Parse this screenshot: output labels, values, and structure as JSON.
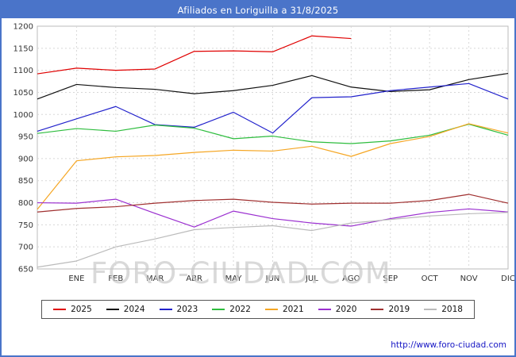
{
  "title": "Afiliados en Loriguilla a 31/8/2025",
  "watermark": "FORO-CIUDAD.COM",
  "footer": {
    "url": "http://www.foro-ciudad.com"
  },
  "chart_data": {
    "type": "line",
    "categories": [
      "",
      "ENE",
      "FEB",
      "MAR",
      "ABR",
      "MAY",
      "JUN",
      "JUL",
      "AGO",
      "SEP",
      "OCT",
      "NOV",
      "DIC"
    ],
    "x_axis_note": "first point is the value at the left axis (start of year); month labels sit on the monthly gridlines",
    "ylim": [
      650,
      1200
    ],
    "y_ticks": [
      1200,
      1150,
      1100,
      1050,
      1000,
      950,
      900,
      850,
      800,
      750,
      700,
      650
    ],
    "grid": true,
    "legend_position": "bottom",
    "series": [
      {
        "name": "2025",
        "color": "#e00000",
        "values": [
          1092,
          1105,
          1100,
          1103,
          1143,
          1144,
          1142,
          1178,
          1172
        ]
      },
      {
        "name": "2024",
        "color": "#111111",
        "values": [
          1035,
          1068,
          1061,
          1057,
          1047,
          1054,
          1066,
          1088,
          1062,
          1052,
          1056,
          1079,
          1093
        ]
      },
      {
        "name": "2023",
        "color": "#2222cc",
        "values": [
          962,
          990,
          1018,
          977,
          971,
          1005,
          958,
          1038,
          1040,
          1054,
          1062,
          1070,
          1035
        ]
      },
      {
        "name": "2022",
        "color": "#2ebd3e",
        "values": [
          957,
          968,
          962,
          976,
          969,
          945,
          951,
          938,
          934,
          940,
          953,
          978,
          953
        ]
      },
      {
        "name": "2021",
        "color": "#f5a623",
        "values": [
          785,
          895,
          904,
          907,
          914,
          919,
          917,
          928,
          905,
          934,
          950,
          979,
          958
        ]
      },
      {
        "name": "2020",
        "color": "#9b30d0",
        "values": [
          800,
          799,
          808,
          776,
          745,
          781,
          764,
          754,
          747,
          764,
          778,
          786,
          779
        ]
      },
      {
        "name": "2019",
        "color": "#a03030",
        "values": [
          779,
          787,
          791,
          799,
          805,
          808,
          801,
          797,
          799,
          799,
          805,
          819,
          799
        ]
      },
      {
        "name": "2018",
        "color": "#bbbbbb",
        "values": [
          654,
          668,
          700,
          718,
          739,
          744,
          748,
          737,
          754,
          762,
          770,
          775,
          778
        ]
      }
    ]
  }
}
